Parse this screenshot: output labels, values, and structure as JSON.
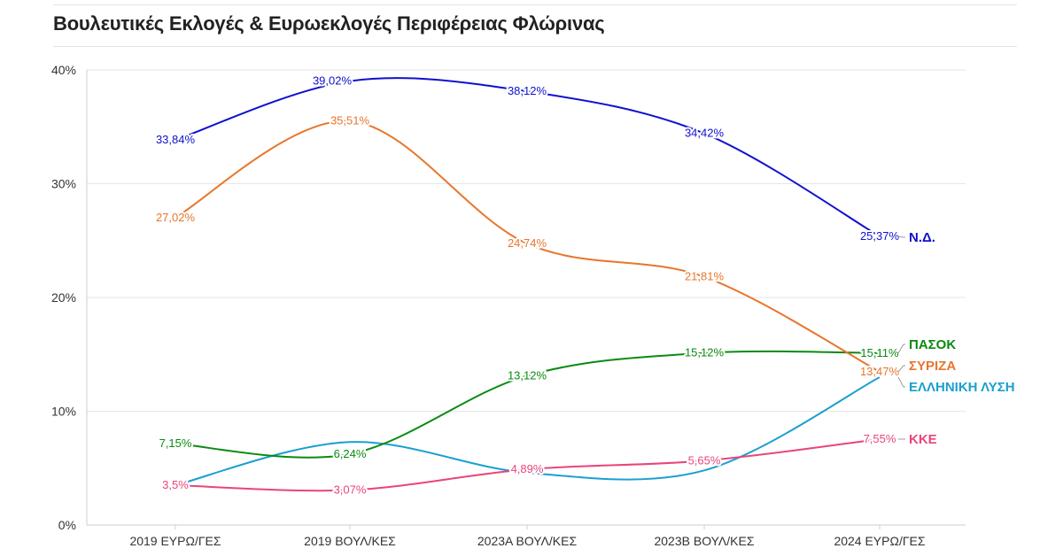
{
  "chart_data": {
    "type": "line",
    "title": "Βουλευτικές Εκλογές & Ευρωεκλογές Περιφέρειας Φλώρινας",
    "categories": [
      "2019 ΕΥΡΩ/ΓΕΣ",
      "2019 ΒΟΥΛ/ΚΕΣ",
      "2023Α ΒΟΥΛ/ΚΕΣ",
      "2023Β ΒΟΥΛ/ΚΕΣ",
      "2024 ΕΥΡΩ/ΓΕΣ"
    ],
    "ylim": [
      0,
      40
    ],
    "yticks": [
      "0%",
      "10%",
      "20%",
      "30%",
      "40%"
    ],
    "grid": true,
    "series": [
      {
        "name": "Ν.Δ.",
        "color": "#1010d0",
        "values": [
          33.84,
          39.02,
          38.12,
          34.42,
          25.37
        ],
        "labels": [
          "33,84%",
          "39,02%",
          "38,12%",
          "34,42%",
          "25,37%"
        ]
      },
      {
        "name": "ΣΥΡΙΖΑ",
        "color": "#e8762d",
        "values": [
          27.02,
          35.51,
          24.74,
          21.81,
          13.47
        ],
        "labels": [
          "27,02%",
          "35,51%",
          "24,74%",
          "21,81%",
          "13,47%"
        ]
      },
      {
        "name": "ΠΑΣΟΚ",
        "color": "#0a8a12",
        "values": [
          7.15,
          6.24,
          13.12,
          15.12,
          15.11
        ],
        "labels": [
          "7,15%",
          "6,24%",
          "13,12%",
          "15,12%",
          "15,11%"
        ]
      },
      {
        "name": "ΕΛΛΗΝΙΚΗ ΛΥΣΗ",
        "color": "#1aa0d0",
        "values": [
          3.5,
          7.3,
          4.6,
          4.8,
          13.0
        ],
        "labels": []
      },
      {
        "name": "ΚΚΕ",
        "color": "#e8457a",
        "values": [
          3.5,
          3.07,
          4.89,
          5.65,
          7.55
        ],
        "labels": [
          "3,5%",
          "3,07%",
          "4,89%",
          "5,65%",
          "7,55%"
        ]
      }
    ]
  }
}
